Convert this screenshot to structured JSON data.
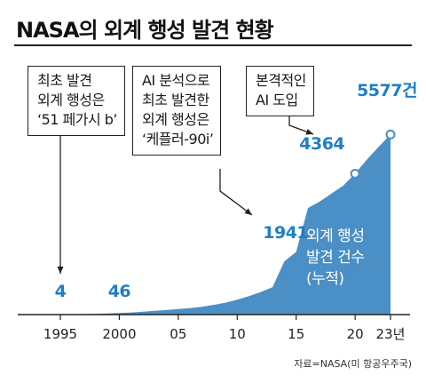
{
  "title": "NASA의 외계 행성 발견 현황",
  "source": "자료=NASA(미 항공우주국)",
  "callouts": [
    {
      "lines": [
        "최초 발견",
        "외계 행성은",
        "‘51 페가시 b’"
      ]
    },
    {
      "lines": [
        "AI 분석으로",
        "최초 발견한",
        "외계 행성은",
        "‘케플러-90i’"
      ]
    },
    {
      "lines": [
        "본격적인",
        "AI 도입"
      ]
    }
  ],
  "chart_data": {
    "type": "area",
    "title": "NASA의 외계 행성 발견 현황",
    "xlabel": "",
    "ylabel": "",
    "legend": [
      "외계 행성",
      "발견 건수",
      "(누적)"
    ],
    "x": [
      1995,
      1996,
      1997,
      1998,
      1999,
      2000,
      2001,
      2002,
      2003,
      2004,
      2005,
      2006,
      2007,
      2008,
      2009,
      2010,
      2011,
      2012,
      2013,
      2014,
      2015,
      2016,
      2017,
      2018,
      2019,
      2020,
      2021,
      2022,
      2023
    ],
    "values": [
      4,
      10,
      15,
      20,
      35,
      46,
      65,
      90,
      115,
      140,
      170,
      200,
      240,
      300,
      370,
      460,
      570,
      700,
      850,
      1650,
      1941,
      3300,
      3500,
      3750,
      4000,
      4364,
      4800,
      5200,
      5577
    ],
    "xlim": [
      1995,
      2023
    ],
    "ylim": [
      0,
      6000
    ],
    "tick_values": [
      1995,
      2000,
      2005,
      2010,
      2015,
      2020,
      2023
    ],
    "tick_labels": [
      "1995",
      "2000",
      "05",
      "10",
      "15",
      "20",
      "23년"
    ],
    "annotations": [
      {
        "x": 1995,
        "value": 4,
        "label": "4",
        "marker": false
      },
      {
        "x": 2000,
        "value": 46,
        "label": "46",
        "marker": false
      },
      {
        "x": 2015,
        "value": 1941,
        "label": "1941",
        "marker": false
      },
      {
        "x": 2020,
        "value": 4364,
        "label": "4364",
        "marker": true
      },
      {
        "x": 2023,
        "value": 5577,
        "label": "5577건",
        "marker": true
      }
    ],
    "colors": {
      "area": "#4a8fc5",
      "label": "#1f7fc4",
      "marker": "#ffffff"
    }
  }
}
